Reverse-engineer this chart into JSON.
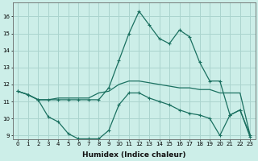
{
  "xlabel": "Humidex (Indice chaleur)",
  "background_color": "#cceee8",
  "grid_color": "#aad4ce",
  "line_color": "#1a7060",
  "x": [
    0,
    1,
    2,
    3,
    4,
    5,
    6,
    7,
    8,
    9,
    10,
    11,
    12,
    13,
    14,
    15,
    16,
    17,
    18,
    19,
    20,
    21,
    22,
    23
  ],
  "line_max": [
    11.6,
    11.4,
    11.1,
    11.1,
    11.1,
    11.1,
    11.1,
    11.1,
    11.1,
    11.8,
    13.4,
    15.0,
    16.3,
    15.5,
    14.7,
    14.4,
    15.2,
    14.8,
    13.3,
    12.2,
    12.2,
    10.2,
    10.5,
    9.0
  ],
  "line_mean": [
    11.6,
    11.4,
    11.1,
    11.1,
    11.2,
    11.2,
    11.2,
    11.2,
    11.5,
    11.6,
    12.0,
    12.2,
    12.2,
    12.1,
    12.0,
    11.9,
    11.8,
    11.8,
    11.7,
    11.7,
    11.5,
    11.5,
    11.5,
    9.0
  ],
  "line_min": [
    11.6,
    11.4,
    11.1,
    10.1,
    9.8,
    9.1,
    8.8,
    8.8,
    8.8,
    9.3,
    10.8,
    11.5,
    11.5,
    11.2,
    11.0,
    10.8,
    10.5,
    10.3,
    10.2,
    10.0,
    9.0,
    10.2,
    10.5,
    8.9
  ],
  "ylim": [
    8.8,
    16.8
  ],
  "yticks": [
    9,
    10,
    11,
    12,
    13,
    14,
    15,
    16
  ],
  "xticks": [
    0,
    1,
    2,
    3,
    4,
    5,
    6,
    7,
    8,
    9,
    10,
    11,
    12,
    13,
    14,
    15,
    16,
    17,
    18,
    19,
    20,
    21,
    22,
    23
  ]
}
